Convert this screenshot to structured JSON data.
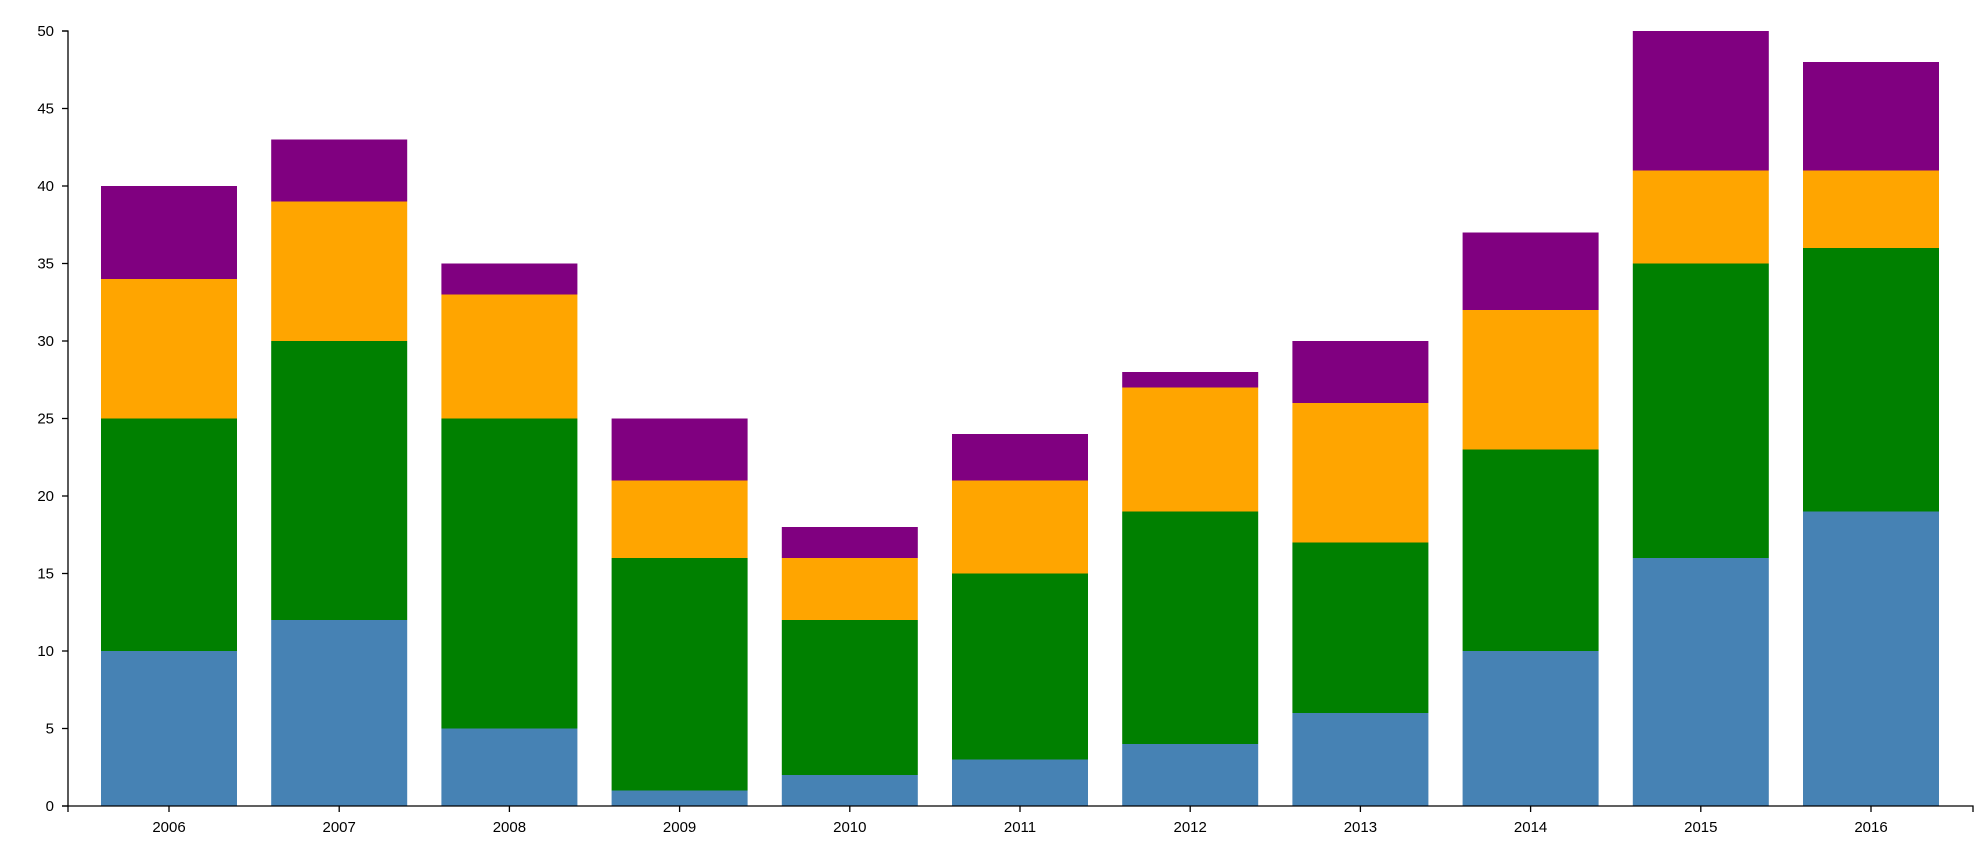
{
  "chart_data": {
    "type": "bar",
    "stacked": true,
    "categories": [
      "2006",
      "2007",
      "2008",
      "2009",
      "2010",
      "2011",
      "2012",
      "2013",
      "2014",
      "2015",
      "2016"
    ],
    "series": [
      {
        "color": "#4682b4",
        "values": [
          10,
          12,
          5,
          1,
          2,
          3,
          4,
          6,
          10,
          16,
          19
        ]
      },
      {
        "color": "#008000",
        "values": [
          15,
          18,
          20,
          15,
          10,
          12,
          15,
          11,
          13,
          19,
          17
        ]
      },
      {
        "color": "#ffa500",
        "values": [
          9,
          9,
          8,
          5,
          4,
          6,
          8,
          9,
          9,
          6,
          5
        ]
      },
      {
        "color": "#800080",
        "values": [
          6,
          4,
          2,
          4,
          2,
          3,
          1,
          4,
          5,
          9,
          7
        ]
      }
    ],
    "y_ticks": [
      0,
      5,
      10,
      15,
      20,
      25,
      30,
      35,
      40,
      45,
      50
    ],
    "ylim": [
      0,
      50
    ],
    "title": "",
    "xlabel": "",
    "ylabel": "",
    "grid": false,
    "legend": "none"
  }
}
